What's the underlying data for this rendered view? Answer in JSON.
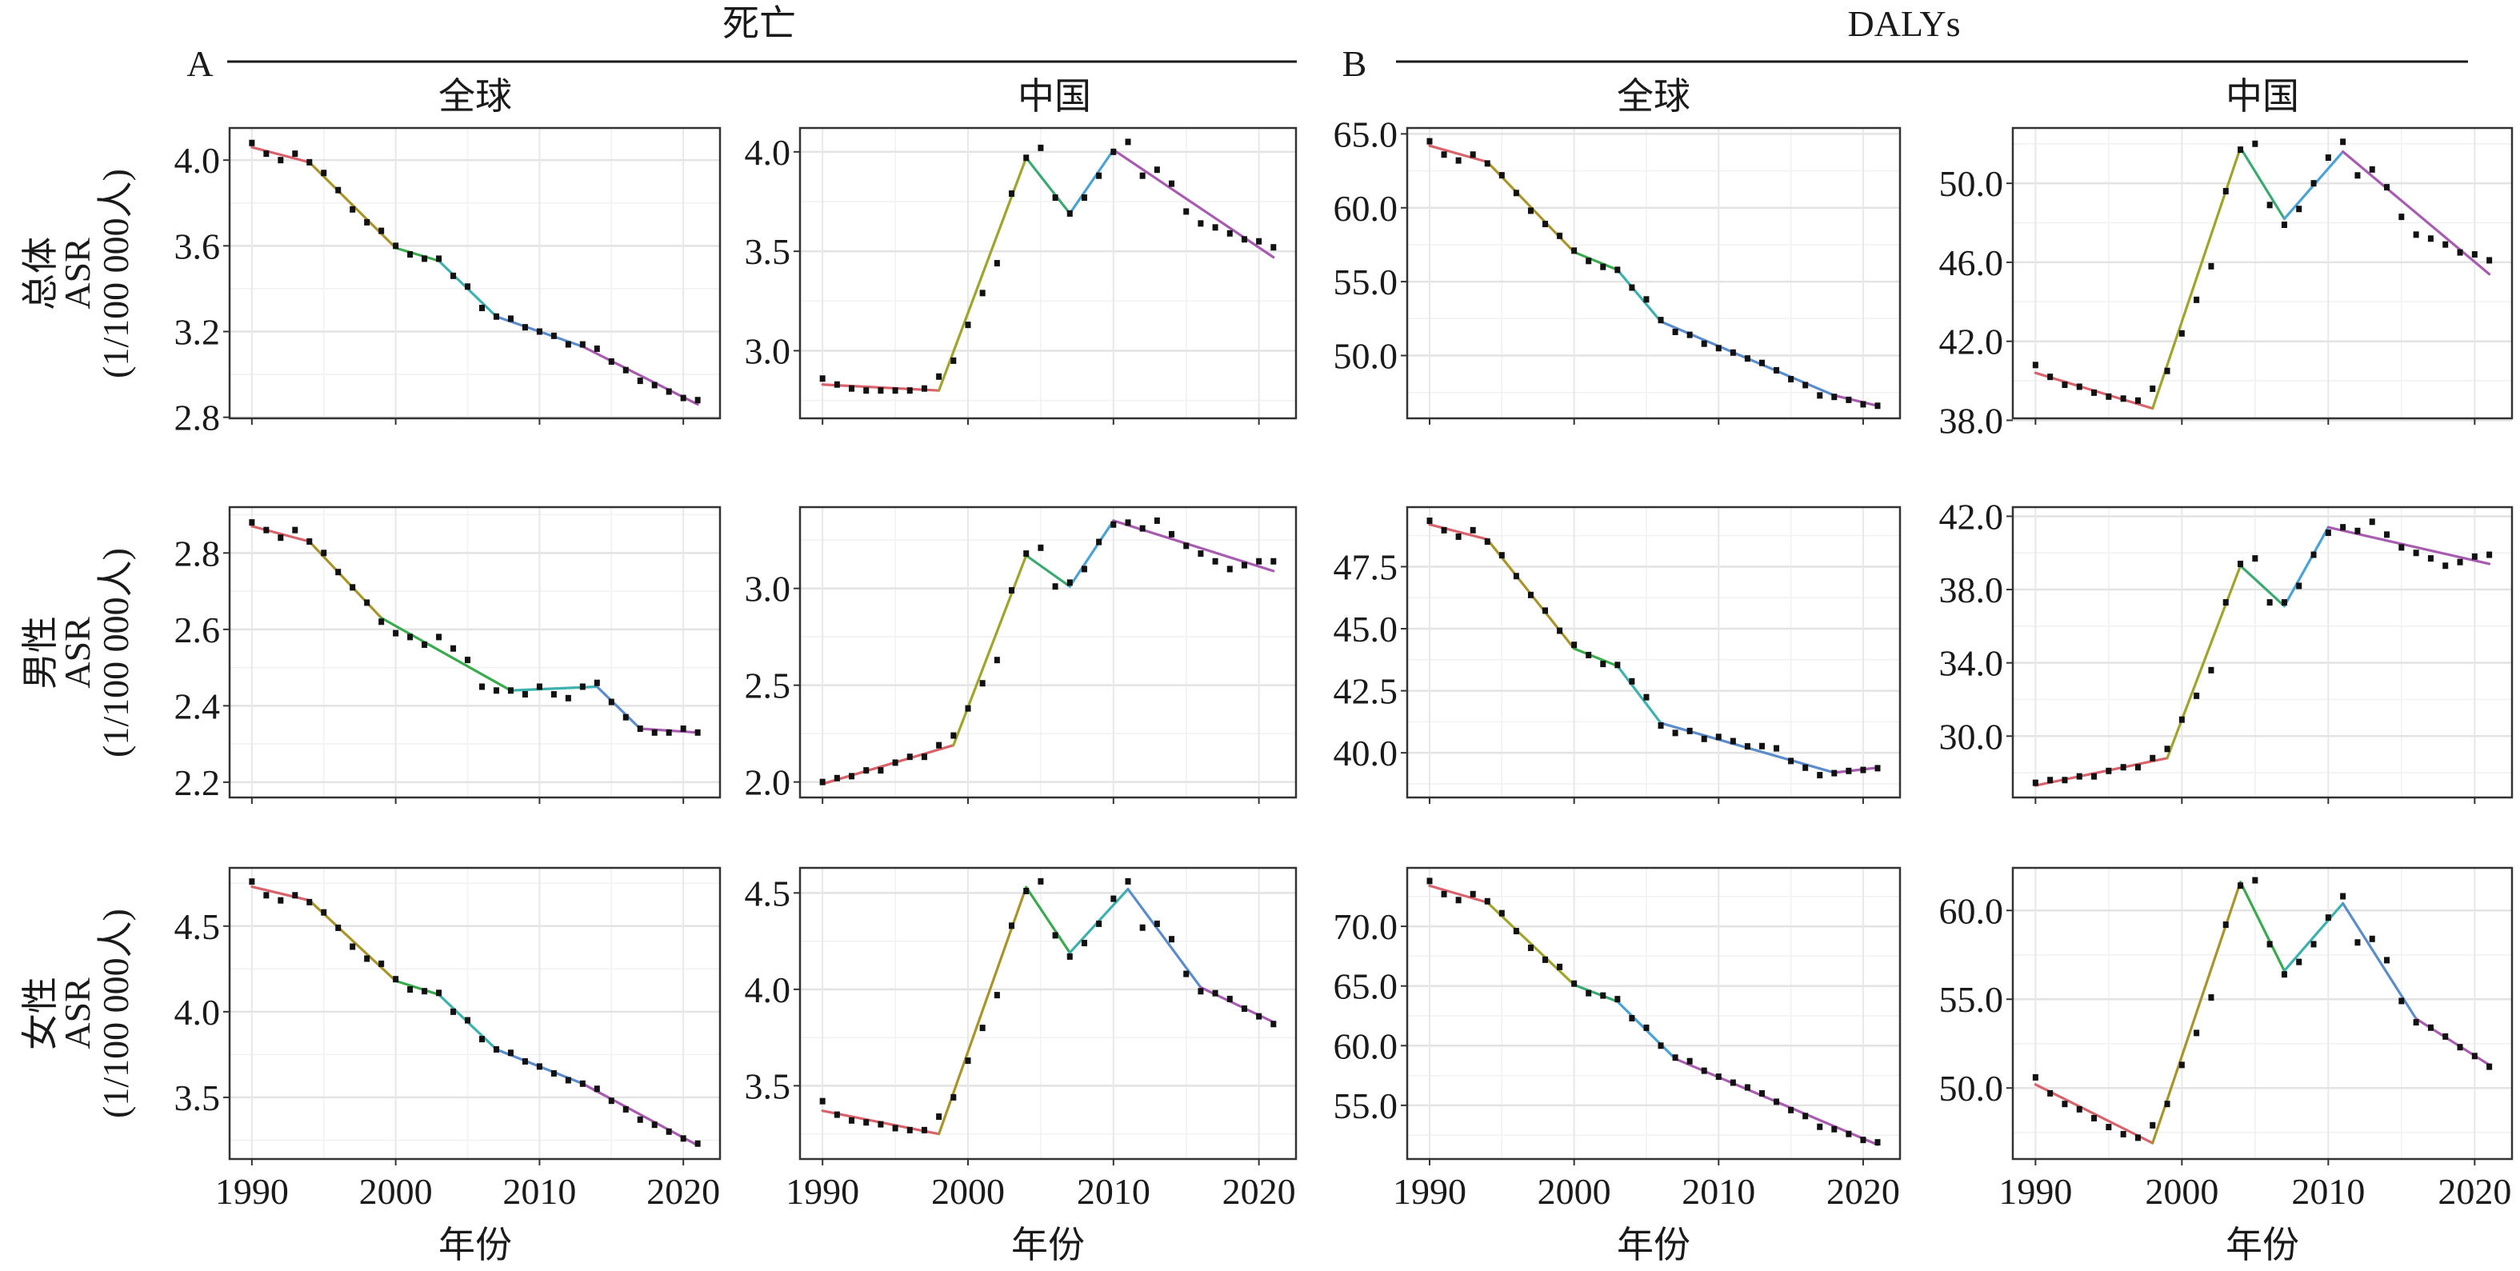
{
  "headers": {
    "death": "死亡",
    "dalys": "DALYs",
    "panel_a": "A",
    "panel_b": "B",
    "global": "全球",
    "china": "中国",
    "x_label": "年份"
  },
  "row_labels": [
    {
      "group": "总体",
      "metric": "ASR",
      "unit": "(1/100 000人)"
    },
    {
      "group": "男性",
      "metric": "ASR",
      "unit": "(1/100 000人)"
    },
    {
      "group": "女性",
      "metric": "ASR",
      "unit": "(1/100 000人)"
    }
  ],
  "chart_data": {
    "type": "line",
    "description_of_marks": "scatter of observed ASR with joinpoint fitted segments",
    "x": [
      1990,
      1991,
      1992,
      1993,
      1994,
      1995,
      1996,
      1997,
      1998,
      1999,
      2000,
      2001,
      2002,
      2003,
      2004,
      2005,
      2006,
      2007,
      2008,
      2009,
      2010,
      2011,
      2012,
      2013,
      2014,
      2015,
      2016,
      2017,
      2018,
      2019,
      2020,
      2021
    ],
    "xlim": [
      1988.45,
      2022.55
    ],
    "xticks": [
      1990,
      2000,
      2010,
      2020
    ],
    "xtick_labels": [
      "1990",
      "2000",
      "2010",
      "2020"
    ],
    "xlabel": "年份",
    "grid": true,
    "panels": [
      {
        "measure": "死亡",
        "region": "全球",
        "sex": "总体",
        "values": [
          4.08,
          4.03,
          4.0,
          4.03,
          3.99,
          3.94,
          3.86,
          3.77,
          3.71,
          3.67,
          3.6,
          3.56,
          3.54,
          3.54,
          3.46,
          3.41,
          3.31,
          3.27,
          3.26,
          3.22,
          3.2,
          3.18,
          3.14,
          3.14,
          3.12,
          3.06,
          3.02,
          2.97,
          2.95,
          2.92,
          2.89,
          2.88
        ],
        "fit_years": [
          1990,
          1994,
          2000,
          2003,
          2007,
          2013,
          2021
        ],
        "fit_values": [
          4.06,
          3.99,
          3.59,
          3.53,
          3.27,
          3.13,
          2.86
        ],
        "segment_colors": [
          "#d9636c",
          "#a8952a",
          "#3aaa4e",
          "#3cb1ad",
          "#5b8ccc",
          "#a85cb0"
        ],
        "ylim": [
          2.795,
          4.15
        ],
        "yticks": [
          2.8,
          3.2,
          3.6,
          4.0
        ],
        "ytick_labels": [
          "2.8",
          "3.2",
          "3.6",
          "4.0"
        ]
      },
      {
        "measure": "死亡",
        "region": "中国",
        "sex": "总体",
        "values": [
          2.86,
          2.83,
          2.81,
          2.8,
          2.8,
          2.8,
          2.8,
          2.81,
          2.87,
          2.95,
          3.13,
          3.29,
          3.44,
          3.79,
          3.97,
          4.02,
          3.77,
          3.69,
          3.77,
          3.88,
          4.0,
          4.05,
          3.88,
          3.91,
          3.84,
          3.7,
          3.64,
          3.62,
          3.59,
          3.56,
          3.55,
          3.52
        ],
        "fit_years": [
          1990,
          1998,
          2004,
          2007,
          2010,
          2021
        ],
        "fit_values": [
          2.83,
          2.8,
          3.97,
          3.69,
          4.01,
          3.47
        ],
        "segment_colors": [
          "#d9636c",
          "#9ea52a",
          "#3aaa72",
          "#4aa3d4",
          "#a85cb0"
        ],
        "ylim": [
          2.66,
          4.12
        ],
        "yticks": [
          3.0,
          3.5,
          4.0
        ],
        "ytick_labels": [
          "3.0",
          "3.5",
          "4.0"
        ]
      },
      {
        "measure": "DALYs",
        "region": "全球",
        "sex": "总体",
        "values": [
          64.5,
          63.6,
          63.2,
          63.6,
          63.0,
          62.2,
          61.0,
          59.8,
          58.9,
          58.1,
          57.1,
          56.4,
          56.0,
          55.8,
          54.6,
          53.8,
          52.4,
          51.6,
          51.4,
          50.8,
          50.5,
          50.2,
          49.8,
          49.5,
          49.0,
          48.4,
          48.0,
          47.3,
          47.2,
          47.0,
          46.7,
          46.6
        ],
        "fit_years": [
          1990,
          1994,
          2000,
          2003,
          2006,
          2018,
          2021
        ],
        "fit_values": [
          64.2,
          63.1,
          57.0,
          55.8,
          52.3,
          47.3,
          46.6
        ],
        "segment_colors": [
          "#d9636c",
          "#a8952a",
          "#3aaa4e",
          "#3cb1ad",
          "#5b8ccc",
          "#a85cb0"
        ],
        "ylim": [
          45.75,
          65.4
        ],
        "yticks": [
          50,
          55,
          60,
          65
        ],
        "ytick_labels": [
          "50.0",
          "55.0",
          "60.0",
          "65.0"
        ]
      },
      {
        "measure": "DALYs",
        "region": "中国",
        "sex": "总体",
        "values": [
          40.8,
          40.2,
          39.8,
          39.7,
          39.4,
          39.2,
          39.1,
          39.0,
          39.6,
          40.5,
          42.4,
          44.1,
          45.8,
          49.6,
          51.7,
          52.0,
          48.9,
          47.9,
          48.7,
          50.0,
          51.3,
          52.1,
          50.4,
          50.7,
          49.8,
          48.3,
          47.4,
          47.2,
          46.9,
          46.5,
          46.4,
          46.1
        ],
        "fit_years": [
          1990,
          1998,
          2004,
          2007,
          2011,
          2021
        ],
        "fit_values": [
          40.4,
          38.6,
          51.8,
          48.2,
          51.6,
          45.4
        ],
        "segment_colors": [
          "#d9636c",
          "#9ea52a",
          "#3aaa72",
          "#4aa3d4",
          "#a85cb0"
        ],
        "ylim": [
          38.1,
          52.8
        ],
        "yticks": [
          38,
          42,
          46,
          50
        ],
        "ytick_labels": [
          "38.0",
          "42.0",
          "46.0",
          "50.0"
        ]
      },
      {
        "measure": "死亡",
        "region": "全球",
        "sex": "男性",
        "values": [
          2.88,
          2.86,
          2.84,
          2.86,
          2.83,
          2.8,
          2.75,
          2.71,
          2.67,
          2.62,
          2.59,
          2.58,
          2.56,
          2.58,
          2.55,
          2.52,
          2.45,
          2.44,
          2.44,
          2.43,
          2.45,
          2.43,
          2.42,
          2.45,
          2.46,
          2.41,
          2.37,
          2.34,
          2.33,
          2.33,
          2.34,
          2.33
        ],
        "fit_years": [
          1990,
          1994,
          1999,
          2008,
          2014,
          2017,
          2021
        ],
        "fit_values": [
          2.87,
          2.83,
          2.63,
          2.44,
          2.45,
          2.34,
          2.33
        ],
        "segment_colors": [
          "#d9636c",
          "#a8952a",
          "#3aaa4e",
          "#3cb1ad",
          "#5b8ccc",
          "#a85cb0"
        ],
        "ylim": [
          2.16,
          2.92
        ],
        "yticks": [
          2.2,
          2.4,
          2.6,
          2.8
        ],
        "ytick_labels": [
          "2.2",
          "2.4",
          "2.6",
          "2.8"
        ]
      },
      {
        "measure": "死亡",
        "region": "中国",
        "sex": "男性",
        "values": [
          2.0,
          2.02,
          2.03,
          2.06,
          2.06,
          2.1,
          2.13,
          2.13,
          2.19,
          2.24,
          2.38,
          2.51,
          2.63,
          2.99,
          3.18,
          3.21,
          3.01,
          3.03,
          3.1,
          3.24,
          3.33,
          3.34,
          3.31,
          3.35,
          3.28,
          3.22,
          3.18,
          3.14,
          3.1,
          3.12,
          3.14,
          3.14
        ],
        "fit_years": [
          1990,
          1999,
          2004,
          2007,
          2010,
          2021
        ],
        "fit_values": [
          1.99,
          2.19,
          3.17,
          3.01,
          3.35,
          3.09
        ],
        "segment_colors": [
          "#d9636c",
          "#9ea52a",
          "#3aaa72",
          "#4aa3d4",
          "#a85cb0"
        ],
        "ylim": [
          1.92,
          3.42
        ],
        "yticks": [
          2.0,
          2.5,
          3.0
        ],
        "ytick_labels": [
          "2.0",
          "2.5",
          "3.0"
        ]
      },
      {
        "measure": "DALYs",
        "region": "全球",
        "sex": "男性",
        "values": [
          49.35,
          48.97,
          48.71,
          48.97,
          48.51,
          47.96,
          47.12,
          46.36,
          45.73,
          44.92,
          44.35,
          43.94,
          43.58,
          43.54,
          42.88,
          42.24,
          41.1,
          40.8,
          40.88,
          40.56,
          40.64,
          40.47,
          40.26,
          40.27,
          40.18,
          39.67,
          39.4,
          39.1,
          39.18,
          39.27,
          39.31,
          39.38
        ],
        "fit_years": [
          1990,
          1994,
          2000,
          2003,
          2006,
          2018,
          2021
        ],
        "fit_values": [
          49.2,
          48.6,
          44.2,
          43.5,
          41.2,
          39.2,
          39.4
        ],
        "segment_colors": [
          "#d9636c",
          "#a8952a",
          "#3aaa4e",
          "#3cb1ad",
          "#5b8ccc",
          "#a85cb0"
        ],
        "ylim": [
          38.2,
          49.9
        ],
        "yticks": [
          40,
          42.5,
          45,
          47.5
        ],
        "ytick_labels": [
          "40.0",
          "42.5",
          "45.0",
          "47.5"
        ]
      },
      {
        "measure": "DALYs",
        "region": "中国",
        "sex": "男性",
        "values": [
          27.45,
          27.6,
          27.6,
          27.8,
          27.8,
          28.1,
          28.3,
          28.3,
          28.8,
          29.3,
          30.9,
          32.2,
          33.6,
          37.3,
          39.4,
          39.7,
          37.3,
          37.3,
          38.2,
          39.9,
          41.1,
          41.4,
          41.2,
          41.7,
          41.0,
          40.3,
          40.0,
          39.7,
          39.3,
          39.5,
          39.8,
          39.9
        ],
        "fit_years": [
          1990,
          1999,
          2004,
          2007,
          2010,
          2021
        ],
        "fit_values": [
          27.3,
          28.8,
          39.3,
          37.1,
          41.4,
          39.4
        ],
        "segment_colors": [
          "#d9636c",
          "#9ea52a",
          "#3aaa72",
          "#4aa3d4",
          "#a85cb0"
        ],
        "ylim": [
          26.65,
          42.5
        ],
        "yticks": [
          30,
          34,
          38,
          42
        ],
        "ytick_labels": [
          "30.0",
          "34.0",
          "38.0",
          "42.0"
        ]
      },
      {
        "measure": "死亡",
        "region": "全球",
        "sex": "女性",
        "values": [
          4.76,
          4.68,
          4.65,
          4.68,
          4.64,
          4.58,
          4.49,
          4.38,
          4.31,
          4.28,
          4.19,
          4.13,
          4.12,
          4.11,
          4.0,
          3.95,
          3.84,
          3.78,
          3.76,
          3.71,
          3.68,
          3.64,
          3.6,
          3.58,
          3.55,
          3.48,
          3.43,
          3.37,
          3.34,
          3.3,
          3.26,
          3.23
        ],
        "fit_years": [
          1990,
          1994,
          2000,
          2003,
          2007,
          2013,
          2021
        ],
        "fit_values": [
          4.73,
          4.65,
          4.18,
          4.1,
          3.78,
          3.58,
          3.22
        ],
        "segment_colors": [
          "#d9636c",
          "#a8952a",
          "#3aaa4e",
          "#3cb1ad",
          "#5b8ccc",
          "#a85cb0"
        ],
        "ylim": [
          3.14,
          4.84
        ],
        "yticks": [
          3.5,
          4.0,
          4.5
        ],
        "ytick_labels": [
          "3.5",
          "4.0",
          "4.5"
        ]
      },
      {
        "measure": "死亡",
        "region": "中国",
        "sex": "女性",
        "values": [
          3.42,
          3.35,
          3.32,
          3.31,
          3.3,
          3.28,
          3.27,
          3.27,
          3.34,
          3.44,
          3.63,
          3.8,
          3.97,
          4.33,
          4.51,
          4.56,
          4.28,
          4.17,
          4.24,
          4.34,
          4.47,
          4.56,
          4.32,
          4.34,
          4.26,
          4.08,
          3.99,
          3.98,
          3.95,
          3.9,
          3.86,
          3.82
        ],
        "fit_years": [
          1990,
          1998,
          2004,
          2007,
          2011,
          2016,
          2021
        ],
        "fit_values": [
          3.37,
          3.25,
          4.53,
          4.19,
          4.52,
          4.01,
          3.83
        ],
        "segment_colors": [
          "#d9636c",
          "#a8952a",
          "#3aaa4e",
          "#3cb1ad",
          "#5b8ccc",
          "#a85cb0"
        ],
        "ylim": [
          3.12,
          4.63
        ],
        "yticks": [
          3.5,
          4.0,
          4.5
        ],
        "ytick_labels": [
          "3.5",
          "4.0",
          "4.5"
        ]
      },
      {
        "measure": "DALYs",
        "region": "全球",
        "sex": "女性",
        "values": [
          73.8,
          72.7,
          72.2,
          72.7,
          72.1,
          71.1,
          69.6,
          68.2,
          67.2,
          66.6,
          65.2,
          64.4,
          64.2,
          63.9,
          62.3,
          61.5,
          60.0,
          59.0,
          58.7,
          57.9,
          57.4,
          56.9,
          56.5,
          56.0,
          55.3,
          54.6,
          54.1,
          53.2,
          53.0,
          52.6,
          52.1,
          51.9
        ],
        "fit_years": [
          1990,
          1994,
          2000,
          2003,
          2007,
          2021
        ],
        "fit_values": [
          73.4,
          72.0,
          65.1,
          63.7,
          58.9,
          51.7
        ],
        "segment_colors": [
          "#d9636c",
          "#9ea52a",
          "#3aaa72",
          "#4aa3d4",
          "#a85cb0"
        ],
        "ylim": [
          50.5,
          74.9
        ],
        "yticks": [
          55,
          60,
          65,
          70
        ],
        "ytick_labels": [
          "55.0",
          "60.0",
          "65.0",
          "70.0"
        ]
      },
      {
        "measure": "DALYs",
        "region": "中国",
        "sex": "女性",
        "values": [
          50.6,
          49.7,
          49.1,
          48.8,
          48.3,
          47.8,
          47.4,
          47.2,
          47.9,
          49.1,
          51.3,
          53.1,
          55.1,
          59.2,
          61.4,
          61.7,
          58.1,
          56.4,
          57.1,
          58.1,
          59.6,
          60.8,
          58.2,
          58.4,
          57.2,
          54.9,
          53.7,
          53.4,
          52.9,
          52.3,
          51.8,
          51.2
        ],
        "fit_years": [
          1990,
          1998,
          2004,
          2007,
          2011,
          2016,
          2021
        ],
        "fit_values": [
          50.2,
          46.9,
          61.6,
          56.6,
          60.4,
          53.9,
          51.3
        ],
        "segment_colors": [
          "#d9636c",
          "#a8952a",
          "#3aaa4e",
          "#3cb1ad",
          "#5b8ccc",
          "#a85cb0"
        ],
        "ylim": [
          46.0,
          62.4
        ],
        "yticks": [
          50,
          55,
          60
        ],
        "ytick_labels": [
          "50.0",
          "55.0",
          "60.0"
        ]
      }
    ]
  }
}
